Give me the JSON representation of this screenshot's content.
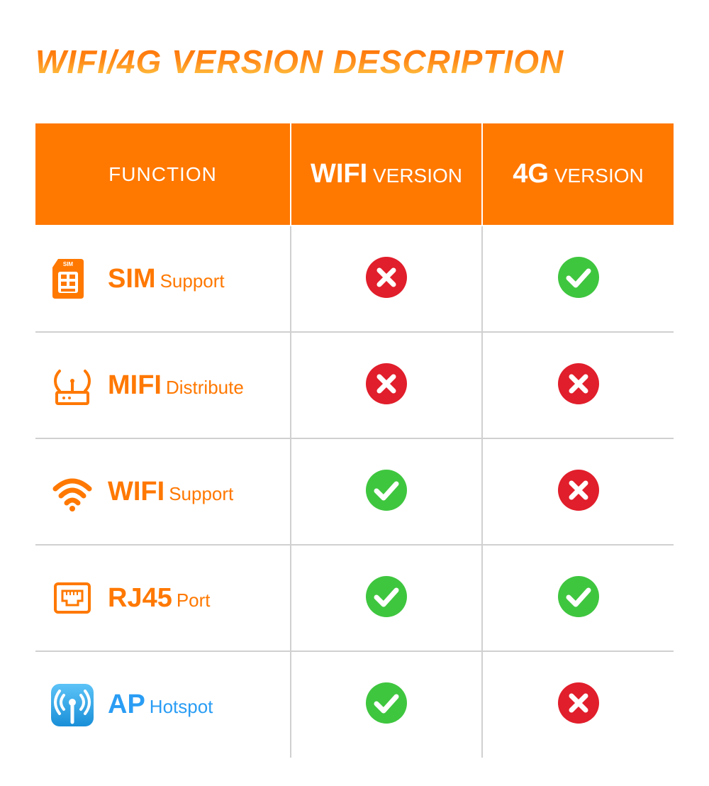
{
  "title": "WIFI/4G VERSION DESCRIPTION",
  "colors": {
    "header_bg": "#ff7800",
    "header_text": "#ffffff",
    "border": "#d0d0d0",
    "orange_text": "#ff7800",
    "blue_text": "#2a9df4",
    "check_green": "#3fc63f",
    "cross_red": "#e11e2b",
    "title_grad_top": "#ff6a00",
    "title_grad_bot": "#ffd34d",
    "ap_bg_top": "#4bb8f5",
    "ap_bg_bot": "#1a8fd8"
  },
  "header": {
    "function": "FUNCTION",
    "col1_big": "WIFI",
    "col1_small": "VERSION",
    "col2_big": "4G",
    "col2_small": "VERSION"
  },
  "rows": [
    {
      "icon": "sim",
      "main": "SIM",
      "sub": "Support",
      "color": "orange",
      "wifi": false,
      "fourg": true
    },
    {
      "icon": "mifi",
      "main": "MIFI",
      "sub": "Distribute",
      "color": "orange",
      "wifi": false,
      "fourg": false
    },
    {
      "icon": "wifi",
      "main": "WIFI",
      "sub": "Support",
      "color": "orange",
      "wifi": true,
      "fourg": false
    },
    {
      "icon": "rj45",
      "main": "RJ45",
      "sub": "Port",
      "color": "orange",
      "wifi": true,
      "fourg": true
    },
    {
      "icon": "ap",
      "main": "AP",
      "sub": "Hotspot",
      "color": "blue",
      "wifi": true,
      "fourg": false
    }
  ]
}
